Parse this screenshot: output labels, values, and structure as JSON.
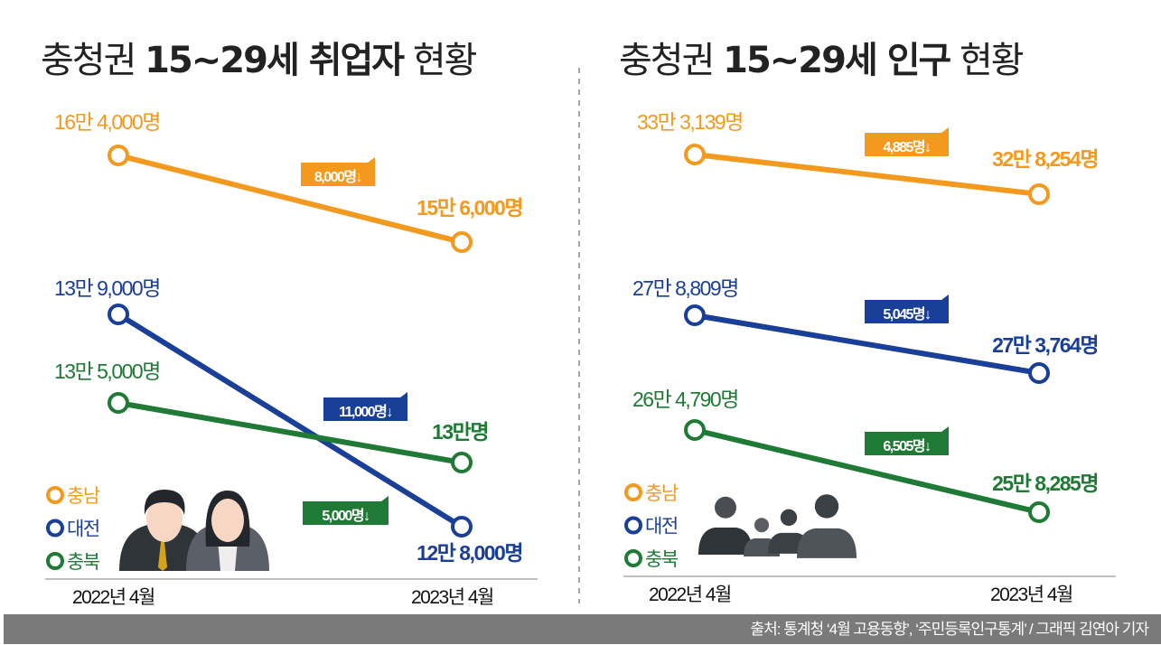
{
  "colors": {
    "충남": "#f39a1e",
    "대전": "#1a3f98",
    "충북": "#1f7a35"
  },
  "chart_data": [
    {
      "type": "line",
      "title_prefix": "충청권 ",
      "title_bold": "15~29세 취업자",
      "title_suffix": " 현황",
      "categories": [
        "2022년 4월",
        "2023년 4월"
      ],
      "series": [
        {
          "name": "충남",
          "values": [
            164000,
            156000
          ],
          "labels": [
            "16만 4,000명",
            "15만 6,000명"
          ],
          "change": "8,000명↓"
        },
        {
          "name": "대전",
          "values": [
            139000,
            128000
          ],
          "labels": [
            "13만 9,000명",
            "12만 8,000명"
          ],
          "change": "11,000명↓"
        },
        {
          "name": "충북",
          "values": [
            135000,
            130000
          ],
          "labels": [
            "13만 5,000명",
            "13만명"
          ],
          "change": "5,000명↓"
        }
      ],
      "legend": [
        "충남",
        "대전",
        "충북"
      ]
    },
    {
      "type": "line",
      "title_prefix": "충청권 ",
      "title_bold": "15~29세 인구",
      "title_suffix": " 현황",
      "categories": [
        "2022년 4월",
        "2023년 4월"
      ],
      "series": [
        {
          "name": "충남",
          "values": [
            333139,
            328254
          ],
          "labels": [
            "33만 3,139명",
            "32만 8,254명"
          ],
          "change": "4,885명↓"
        },
        {
          "name": "대전",
          "values": [
            278809,
            273764
          ],
          "labels": [
            "27만 8,809명",
            "27만 3,764명"
          ],
          "change": "5,045명↓"
        },
        {
          "name": "충북",
          "values": [
            264790,
            258285
          ],
          "labels": [
            "26만 4,790명",
            "25만 8,285명"
          ],
          "change": "6,505명↓"
        }
      ],
      "legend": [
        "충남",
        "대전",
        "충북"
      ]
    }
  ],
  "footer": "출처: 통계청 ‘4월 고용동향’, ‘주민등록인구통계’ / 그래픽 김연아 기자"
}
